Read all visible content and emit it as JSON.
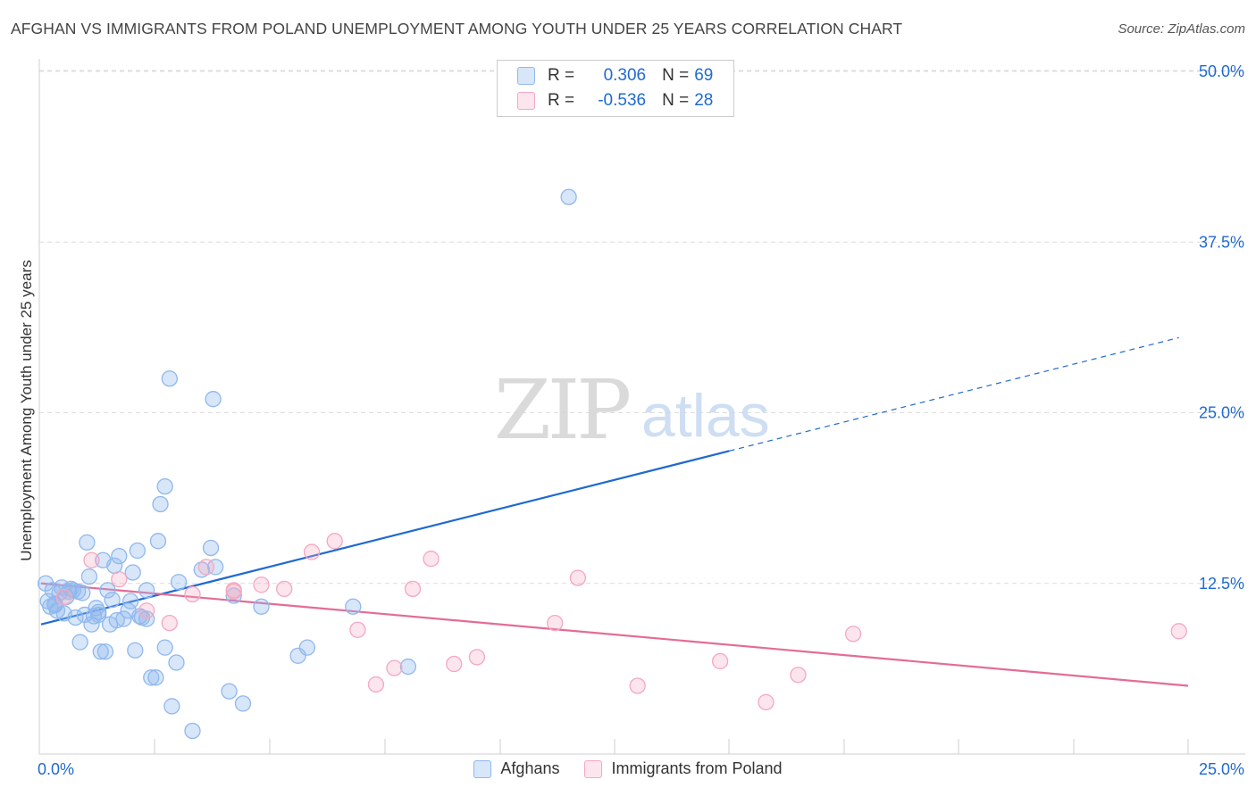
{
  "chart_data": {
    "type": "scatter",
    "title": "AFGHAN VS IMMIGRANTS FROM POLAND UNEMPLOYMENT AMONG YOUTH UNDER 25 YEARS CORRELATION CHART",
    "source": "Source: ZipAtlas.com",
    "xlabel": "",
    "ylabel": "Unemployment Among Youth under 25 years",
    "xlim": [
      0,
      25
    ],
    "ylim": [
      0,
      50
    ],
    "x_tick_labels": {
      "left": "0.0%",
      "right": "25.0%"
    },
    "y_ticks": [
      {
        "value": 12.5,
        "label": "12.5%"
      },
      {
        "value": 25.0,
        "label": "25.0%"
      },
      {
        "value": 37.5,
        "label": "37.5%"
      },
      {
        "value": 50.0,
        "label": "50.0%"
      }
    ],
    "watermark": {
      "zip": "ZIP",
      "atlas": "atlas"
    },
    "series": [
      {
        "name": "Afghans",
        "color": "#8fb8ee",
        "fill": "rgba(143,184,238,0.35)",
        "line_color": "#1f6ad1",
        "r": "0.306",
        "n": "69",
        "trend": {
          "x0": 0,
          "y0": 9.5,
          "x1": 15,
          "y1": 22.2,
          "dash_x1": 24.8,
          "dash_y1": 30.5
        },
        "points": [
          [
            0.1,
            12.5
          ],
          [
            0.15,
            11.2
          ],
          [
            0.2,
            10.8
          ],
          [
            0.25,
            12.0
          ],
          [
            0.3,
            11.0
          ],
          [
            0.35,
            10.5
          ],
          [
            0.4,
            11.8
          ],
          [
            0.45,
            12.2
          ],
          [
            0.5,
            10.3
          ],
          [
            0.55,
            11.5
          ],
          [
            0.6,
            11.9
          ],
          [
            0.65,
            12.1
          ],
          [
            0.7,
            12.0
          ],
          [
            0.75,
            10.0
          ],
          [
            0.8,
            11.9
          ],
          [
            0.85,
            8.2
          ],
          [
            0.9,
            11.8
          ],
          [
            0.95,
            10.2
          ],
          [
            1.0,
            15.5
          ],
          [
            1.05,
            13.0
          ],
          [
            1.1,
            9.5
          ],
          [
            1.15,
            10.1
          ],
          [
            1.2,
            10.7
          ],
          [
            1.25,
            10.2
          ],
          [
            1.3,
            7.5
          ],
          [
            1.35,
            14.2
          ],
          [
            1.4,
            7.5
          ],
          [
            1.45,
            12.0
          ],
          [
            1.5,
            9.5
          ],
          [
            1.55,
            11.3
          ],
          [
            1.6,
            13.8
          ],
          [
            1.65,
            9.8
          ],
          [
            1.7,
            14.5
          ],
          [
            1.8,
            9.9
          ],
          [
            1.9,
            10.5
          ],
          [
            1.95,
            11.2
          ],
          [
            2.0,
            13.3
          ],
          [
            2.05,
            7.6
          ],
          [
            2.1,
            14.9
          ],
          [
            2.15,
            10.1
          ],
          [
            2.2,
            10.0
          ],
          [
            2.3,
            12.0
          ],
          [
            2.4,
            5.6
          ],
          [
            2.5,
            5.6
          ],
          [
            2.55,
            15.6
          ],
          [
            2.6,
            18.3
          ],
          [
            2.7,
            7.8
          ],
          [
            2.7,
            19.6
          ],
          [
            2.8,
            27.5
          ],
          [
            2.85,
            3.5
          ],
          [
            2.95,
            6.7
          ],
          [
            3.0,
            12.6
          ],
          [
            3.3,
            1.7
          ],
          [
            3.5,
            13.5
          ],
          [
            3.7,
            15.1
          ],
          [
            3.75,
            26.0
          ],
          [
            3.8,
            13.7
          ],
          [
            4.1,
            4.6
          ],
          [
            4.2,
            11.6
          ],
          [
            4.4,
            3.7
          ],
          [
            4.8,
            10.8
          ],
          [
            5.6,
            7.2
          ],
          [
            5.8,
            7.8
          ],
          [
            6.8,
            10.8
          ],
          [
            8.0,
            6.4
          ],
          [
            11.5,
            40.8
          ],
          [
            0.3,
            10.9
          ],
          [
            1.25,
            10.4
          ],
          [
            2.3,
            9.9
          ]
        ]
      },
      {
        "name": "Immigrants from Poland",
        "color": "#f4a8c0",
        "fill": "rgba(244,168,192,0.3)",
        "line_color": "#e36c96",
        "r": "-0.536",
        "n": "28",
        "trend": {
          "x0": 0,
          "y0": 12.5,
          "x1": 25,
          "y1": 5.0
        },
        "points": [
          [
            0.5,
            11.5
          ],
          [
            1.1,
            14.2
          ],
          [
            1.7,
            12.8
          ],
          [
            2.3,
            10.5
          ],
          [
            2.8,
            9.6
          ],
          [
            3.3,
            11.7
          ],
          [
            3.6,
            13.7
          ],
          [
            4.2,
            12.0
          ],
          [
            4.8,
            12.4
          ],
          [
            5.3,
            12.1
          ],
          [
            5.9,
            14.8
          ],
          [
            6.4,
            15.6
          ],
          [
            6.9,
            9.1
          ],
          [
            7.3,
            5.1
          ],
          [
            7.7,
            6.3
          ],
          [
            8.1,
            12.1
          ],
          [
            8.5,
            14.3
          ],
          [
            9.0,
            6.6
          ],
          [
            9.5,
            7.1
          ],
          [
            11.2,
            9.6
          ],
          [
            11.7,
            12.9
          ],
          [
            13.0,
            5.0
          ],
          [
            14.8,
            6.8
          ],
          [
            15.8,
            3.8
          ],
          [
            16.5,
            5.8
          ],
          [
            17.7,
            8.8
          ],
          [
            24.8,
            9.0
          ],
          [
            4.2,
            11.9
          ]
        ]
      }
    ]
  }
}
